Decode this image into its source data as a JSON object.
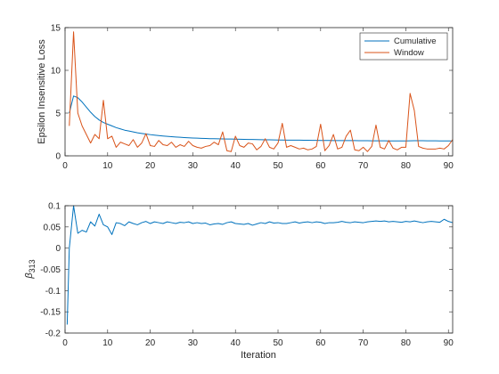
{
  "chart_data": [
    {
      "type": "line",
      "ylabel": "Epsilon Insensitive Loss",
      "xlabel": "",
      "xlim": [
        0,
        91
      ],
      "ylim": [
        0,
        15
      ],
      "xticks": [
        0,
        10,
        20,
        30,
        40,
        50,
        60,
        70,
        80,
        90
      ],
      "yticks": [
        0,
        5,
        10,
        15
      ],
      "legend": "top-right",
      "series": [
        {
          "name": "Cumulative",
          "color": "#0072BD",
          "x": [
            1,
            2,
            3,
            4,
            5,
            6,
            7,
            8,
            9,
            10,
            11,
            12,
            13,
            14,
            15,
            16,
            17,
            18,
            19,
            20,
            21,
            22,
            23,
            24,
            25,
            26,
            27,
            28,
            29,
            30,
            31,
            32,
            33,
            34,
            35,
            36,
            37,
            38,
            39,
            40,
            41,
            42,
            43,
            44,
            45,
            46,
            47,
            48,
            49,
            50,
            51,
            52,
            53,
            54,
            55,
            56,
            57,
            58,
            59,
            60,
            61,
            62,
            63,
            64,
            65,
            66,
            67,
            68,
            69,
            70,
            71,
            72,
            73,
            74,
            75,
            76,
            77,
            78,
            79,
            80,
            81,
            82,
            83,
            84,
            85,
            86,
            87,
            88,
            89,
            90,
            91
          ],
          "values": [
            5.0,
            7.0,
            6.8,
            6.3,
            5.7,
            5.1,
            4.6,
            4.2,
            3.9,
            3.7,
            3.5,
            3.3,
            3.15,
            3.0,
            2.9,
            2.8,
            2.7,
            2.62,
            2.55,
            2.48,
            2.42,
            2.37,
            2.32,
            2.28,
            2.24,
            2.2,
            2.17,
            2.14,
            2.11,
            2.09,
            2.07,
            2.05,
            2.03,
            2.01,
            2.0,
            1.99,
            1.98,
            1.97,
            1.96,
            1.95,
            1.94,
            1.93,
            1.92,
            1.91,
            1.9,
            1.89,
            1.88,
            1.87,
            1.86,
            1.85,
            1.85,
            1.84,
            1.84,
            1.83,
            1.83,
            1.82,
            1.82,
            1.81,
            1.81,
            1.8,
            1.8,
            1.8,
            1.79,
            1.79,
            1.79,
            1.78,
            1.78,
            1.78,
            1.77,
            1.77,
            1.77,
            1.76,
            1.76,
            1.76,
            1.76,
            1.75,
            1.75,
            1.75,
            1.75,
            1.75,
            1.76,
            1.77,
            1.77,
            1.77,
            1.76,
            1.76,
            1.76,
            1.75,
            1.75,
            1.75,
            1.75
          ]
        },
        {
          "name": "Window",
          "color": "#D95319",
          "x": [
            1,
            2,
            3,
            4,
            5,
            6,
            7,
            8,
            9,
            10,
            11,
            12,
            13,
            14,
            15,
            16,
            17,
            18,
            19,
            20,
            21,
            22,
            23,
            24,
            25,
            26,
            27,
            28,
            29,
            30,
            31,
            32,
            33,
            34,
            35,
            36,
            37,
            38,
            39,
            40,
            41,
            42,
            43,
            44,
            45,
            46,
            47,
            48,
            49,
            50,
            51,
            52,
            53,
            54,
            55,
            56,
            57,
            58,
            59,
            60,
            61,
            62,
            63,
            64,
            65,
            66,
            67,
            68,
            69,
            70,
            71,
            72,
            73,
            74,
            75,
            76,
            77,
            78,
            79,
            80,
            81,
            82,
            83,
            84,
            85,
            86,
            87,
            88,
            89,
            90,
            91
          ],
          "values": [
            3.5,
            14.5,
            5.0,
            3.5,
            2.5,
            1.5,
            2.5,
            2.0,
            6.5,
            2.0,
            2.3,
            1.0,
            1.6,
            1.4,
            1.2,
            1.9,
            1.0,
            1.5,
            2.6,
            1.2,
            1.1,
            1.8,
            1.3,
            1.2,
            1.6,
            1.0,
            1.3,
            1.1,
            1.7,
            1.2,
            1.0,
            0.9,
            1.1,
            1.2,
            1.6,
            1.3,
            2.8,
            0.6,
            0.5,
            2.3,
            1.2,
            1.0,
            1.5,
            1.4,
            0.7,
            1.1,
            2.0,
            1.0,
            0.8,
            1.5,
            3.8,
            1.0,
            1.2,
            1.0,
            0.8,
            0.9,
            0.7,
            0.8,
            1.1,
            3.7,
            0.6,
            1.2,
            2.5,
            0.8,
            1.0,
            2.3,
            3.0,
            0.7,
            0.6,
            1.0,
            0.5,
            1.1,
            3.6,
            1.0,
            0.8,
            1.8,
            0.9,
            0.7,
            1.0,
            1.0,
            7.3,
            5.3,
            1.1,
            0.9,
            0.8,
            0.8,
            0.8,
            0.9,
            0.8,
            1.2,
            1.9
          ]
        }
      ]
    },
    {
      "type": "line",
      "xlabel": "Iteration",
      "ylabel_base": "β",
      "ylabel_sub": "313",
      "xlim": [
        0,
        91
      ],
      "ylim": [
        -0.2,
        0.1
      ],
      "xticks": [
        0,
        10,
        20,
        30,
        40,
        50,
        60,
        70,
        80,
        90
      ],
      "yticks": [
        -0.2,
        -0.15,
        -0.1,
        -0.05,
        0,
        0.05,
        0.1
      ],
      "ytick_labels": [
        "-0.2",
        "-0.15",
        "-0.1",
        "-0.05",
        "0",
        "0.05",
        "0.1"
      ],
      "series": [
        {
          "color": "#0072BD",
          "x": [
            0.5,
            1,
            2,
            3,
            4,
            5,
            6,
            7,
            8,
            9,
            10,
            11,
            12,
            13,
            14,
            15,
            16,
            17,
            18,
            19,
            20,
            21,
            22,
            23,
            24,
            25,
            26,
            27,
            28,
            29,
            30,
            31,
            32,
            33,
            34,
            35,
            36,
            37,
            38,
            39,
            40,
            41,
            42,
            43,
            44,
            45,
            46,
            47,
            48,
            49,
            50,
            51,
            52,
            53,
            54,
            55,
            56,
            57,
            58,
            59,
            60,
            61,
            62,
            63,
            64,
            65,
            66,
            67,
            68,
            69,
            70,
            71,
            72,
            73,
            74,
            75,
            76,
            77,
            78,
            79,
            80,
            81,
            82,
            83,
            84,
            85,
            86,
            87,
            88,
            89,
            90,
            91
          ],
          "values": [
            -0.18,
            0.0,
            0.1,
            0.035,
            0.042,
            0.038,
            0.062,
            0.052,
            0.08,
            0.055,
            0.05,
            0.032,
            0.06,
            0.058,
            0.053,
            0.062,
            0.058,
            0.055,
            0.06,
            0.063,
            0.058,
            0.062,
            0.06,
            0.058,
            0.062,
            0.06,
            0.058,
            0.061,
            0.06,
            0.062,
            0.058,
            0.06,
            0.058,
            0.059,
            0.055,
            0.057,
            0.058,
            0.056,
            0.06,
            0.062,
            0.058,
            0.057,
            0.056,
            0.058,
            0.054,
            0.057,
            0.06,
            0.058,
            0.062,
            0.059,
            0.06,
            0.058,
            0.058,
            0.06,
            0.062,
            0.059,
            0.061,
            0.062,
            0.06,
            0.062,
            0.061,
            0.058,
            0.06,
            0.06,
            0.061,
            0.063,
            0.061,
            0.06,
            0.062,
            0.061,
            0.06,
            0.062,
            0.063,
            0.064,
            0.063,
            0.064,
            0.062,
            0.063,
            0.062,
            0.061,
            0.063,
            0.062,
            0.064,
            0.062,
            0.06,
            0.062,
            0.063,
            0.062,
            0.061,
            0.068,
            0.063,
            0.06
          ]
        }
      ]
    }
  ]
}
